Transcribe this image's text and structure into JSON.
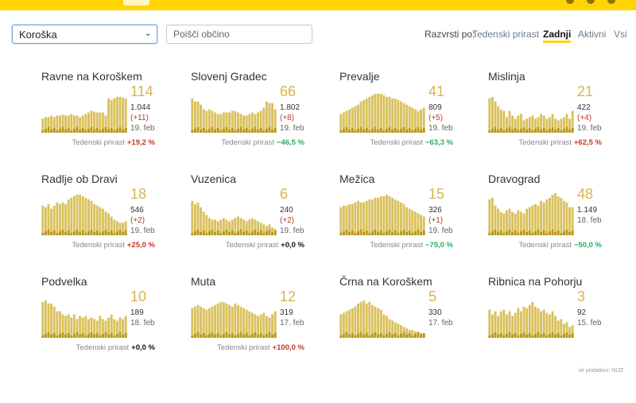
{
  "header": {
    "brand_color": "#ffd400"
  },
  "filter": {
    "region": "Koroška",
    "search_placeholder": "Poišči občino"
  },
  "sort": {
    "label": "Razvrsti po:",
    "options": [
      "Tedenski prirast",
      "Zadnji",
      "Aktivni",
      "Vsi"
    ],
    "active": "Zadnji"
  },
  "colors": {
    "bar": "#d9c15c",
    "bar_dark": "#b8971a",
    "big_number": "#d9b44c",
    "increase": "#c0392b",
    "decrease": "#27ae60"
  },
  "growth_label": "Tedenski prirast",
  "municipalities": [
    {
      "name": "Ravne na Koroškem",
      "big": "114",
      "total": "1.044",
      "delta": "(+11)",
      "date": "19. feb",
      "growth": "+19,2 %",
      "trend": "pos",
      "bars": [
        18,
        20,
        20,
        22,
        20,
        22,
        22,
        23,
        22,
        22,
        24,
        22,
        22,
        20,
        22,
        24,
        26,
        28,
        27,
        26,
        26,
        26,
        22,
        44,
        42,
        44,
        46,
        46,
        45,
        44
      ]
    },
    {
      "name": "Slovenj Gradec",
      "big": "66",
      "total": "1.802",
      "delta": "(+8)",
      "date": "19. feb",
      "growth": "−46,5 %",
      "trend": "neg",
      "bars": [
        44,
        40,
        40,
        36,
        30,
        28,
        30,
        28,
        26,
        24,
        24,
        26,
        26,
        26,
        28,
        28,
        26,
        24,
        22,
        22,
        24,
        26,
        24,
        26,
        28,
        32,
        40,
        38,
        38,
        30
      ]
    },
    {
      "name": "Prevalje",
      "big": "41",
      "total": "809",
      "delta": "(+5)",
      "date": "19. feb",
      "growth": "−63,3 %",
      "trend": "neg",
      "bars": [
        24,
        26,
        28,
        30,
        32,
        34,
        36,
        40,
        42,
        44,
        46,
        48,
        50,
        50,
        50,
        48,
        46,
        46,
        44,
        44,
        42,
        40,
        38,
        36,
        34,
        32,
        30,
        28,
        30,
        32
      ]
    },
    {
      "name": "Mislinja",
      "big": "21",
      "total": "422",
      "delta": "(+4)",
      "date": "19. feb",
      "growth": "+62,5 %",
      "trend": "pos",
      "bars": [
        44,
        46,
        40,
        34,
        30,
        28,
        20,
        28,
        22,
        18,
        22,
        24,
        16,
        18,
        20,
        22,
        18,
        20,
        24,
        22,
        18,
        20,
        24,
        18,
        16,
        18,
        20,
        24,
        18,
        28
      ]
    },
    {
      "name": "Radlje ob Dravi",
      "big": "18",
      "total": "546",
      "delta": "(+2)",
      "date": "19. feb",
      "growth": "+25,0 %",
      "trend": "pos",
      "bars": [
        38,
        36,
        40,
        34,
        38,
        42,
        40,
        42,
        40,
        46,
        48,
        50,
        52,
        52,
        50,
        48,
        46,
        44,
        40,
        38,
        36,
        34,
        30,
        28,
        24,
        20,
        18,
        16,
        16,
        18
      ]
    },
    {
      "name": "Vuzenica",
      "big": "6",
      "total": "240",
      "delta": "(+2)",
      "date": "19. feb",
      "growth": "+0,0 %",
      "trend": "zero",
      "bars": [
        44,
        40,
        42,
        36,
        30,
        26,
        22,
        20,
        20,
        18,
        20,
        22,
        20,
        18,
        20,
        22,
        24,
        22,
        20,
        18,
        20,
        22,
        20,
        18,
        16,
        14,
        12,
        14,
        10,
        8
      ]
    },
    {
      "name": "Mežica",
      "big": "15",
      "total": "326",
      "delta": "(+1)",
      "date": "19. feb",
      "growth": "−75,0 %",
      "trend": "neg",
      "bars": [
        36,
        38,
        38,
        40,
        40,
        42,
        44,
        42,
        42,
        44,
        46,
        46,
        48,
        48,
        50,
        50,
        52,
        50,
        48,
        46,
        44,
        42,
        40,
        36,
        34,
        32,
        30,
        28,
        26,
        24
      ]
    },
    {
      "name": "Dravograd",
      "big": "48",
      "total": "1.149",
      "delta": "",
      "date": "18. feb",
      "growth": "−50,0 %",
      "trend": "neg",
      "bars": [
        46,
        48,
        38,
        34,
        30,
        28,
        32,
        34,
        30,
        28,
        32,
        30,
        28,
        34,
        36,
        38,
        40,
        38,
        44,
        42,
        46,
        48,
        52,
        54,
        50,
        48,
        44,
        42,
        36,
        36
      ]
    },
    {
      "name": "Podvelka",
      "big": "10",
      "total": "189",
      "delta": "",
      "date": "18. feb",
      "growth": "+0,0 %",
      "trend": "zero",
      "bars": [
        46,
        48,
        44,
        44,
        40,
        34,
        34,
        30,
        28,
        30,
        26,
        30,
        24,
        28,
        26,
        28,
        24,
        26,
        24,
        22,
        28,
        24,
        22,
        26,
        30,
        24,
        22,
        26,
        24,
        28
      ]
    },
    {
      "name": "Muta",
      "big": "12",
      "total": "319",
      "delta": "",
      "date": "17. feb",
      "growth": "+100,0 %",
      "trend": "pos",
      "bars": [
        38,
        40,
        42,
        40,
        38,
        36,
        38,
        40,
        42,
        44,
        46,
        46,
        44,
        42,
        40,
        44,
        42,
        40,
        38,
        36,
        34,
        32,
        30,
        28,
        30,
        32,
        28,
        26,
        30,
        34
      ]
    },
    {
      "name": "Črna na Koroškem",
      "big": "5",
      "total": "330",
      "delta": "",
      "date": "17. feb",
      "growth": "",
      "trend": "zero",
      "bars": [
        30,
        32,
        34,
        36,
        38,
        40,
        44,
        46,
        48,
        44,
        46,
        42,
        40,
        38,
        36,
        30,
        28,
        24,
        22,
        20,
        18,
        16,
        14,
        12,
        10,
        10,
        8,
        8,
        6,
        6
      ]
    },
    {
      "name": "Ribnica na Pohorju",
      "big": "3",
      "total": "92",
      "delta": "",
      "date": "15. feb",
      "growth": "",
      "trend": "zero",
      "bars": [
        36,
        30,
        34,
        28,
        34,
        36,
        30,
        34,
        28,
        32,
        38,
        34,
        40,
        38,
        42,
        46,
        40,
        38,
        34,
        36,
        32,
        30,
        34,
        28,
        22,
        24,
        18,
        20,
        14,
        16
      ]
    }
  ],
  "footer": {
    "source": "vir podatkov: NIJZ"
  }
}
